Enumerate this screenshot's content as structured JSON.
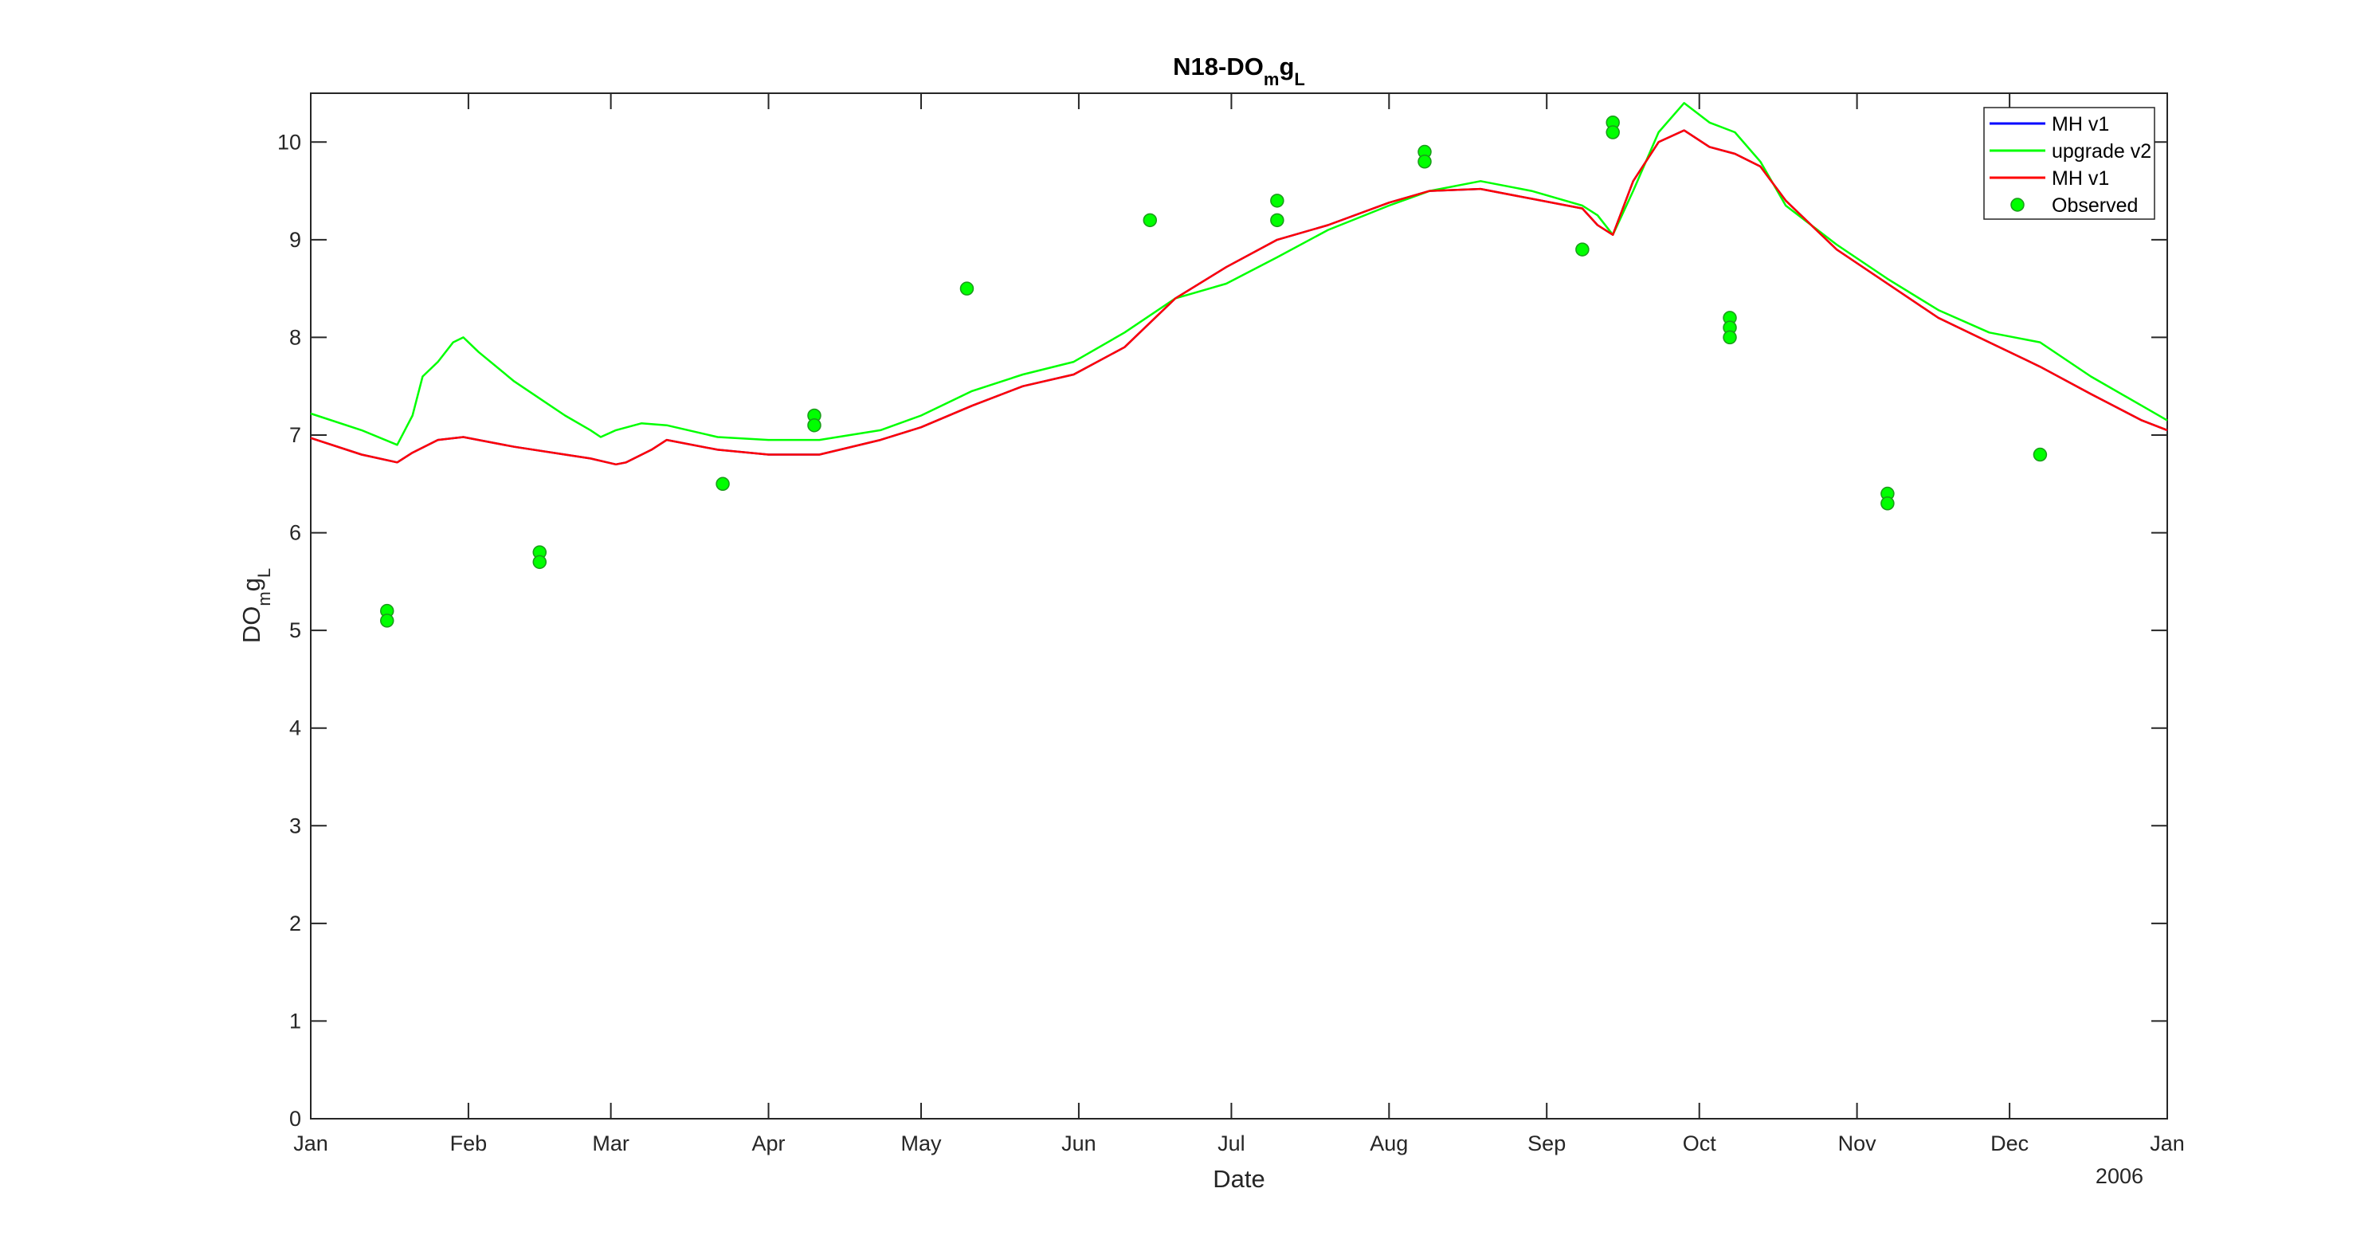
{
  "chart_data": {
    "type": "line",
    "title": "N18-DO",
    "title_sub": "m",
    "title_suffix": "g",
    "title_sub2": "L",
    "xlabel": "Date",
    "ylabel": "DO",
    "ylabel_sub": "m",
    "ylabel_suffix": "g",
    "ylabel_sub2": "L",
    "year_label": "2006",
    "xlim": [
      0,
      365
    ],
    "ylim": [
      0,
      10.5
    ],
    "x_ticks": [
      0,
      31,
      59,
      90,
      120,
      151,
      181,
      212,
      243,
      273,
      304,
      334,
      365
    ],
    "x_tick_labels": [
      "Jan",
      "Feb",
      "Mar",
      "Apr",
      "May",
      "Jun",
      "Jul",
      "Aug",
      "Sep",
      "Oct",
      "Nov",
      "Dec",
      "Jan"
    ],
    "y_ticks": [
      0,
      1,
      2,
      3,
      4,
      5,
      6,
      7,
      8,
      9,
      10
    ],
    "y_tick_labels": [
      "0",
      "1",
      "2",
      "3",
      "4",
      "5",
      "6",
      "7",
      "8",
      "9",
      "10"
    ],
    "grid": false,
    "legend_position": "top-right",
    "series": [
      {
        "name": "MH v1",
        "color": "#0000ff",
        "style": "line",
        "x": [
          0,
          10,
          17,
          20,
          25,
          30,
          35,
          40,
          50,
          55,
          60,
          62,
          67,
          70,
          80,
          90,
          100,
          112,
          120,
          130,
          140,
          150,
          160,
          170,
          180,
          190,
          200,
          212,
          220,
          230,
          240,
          250,
          253,
          256,
          260,
          265,
          270,
          275,
          280,
          285,
          290,
          300,
          310,
          320,
          330,
          340,
          350,
          360,
          365
        ],
        "y": [
          6.97,
          6.8,
          6.72,
          6.82,
          6.95,
          6.98,
          6.93,
          6.88,
          6.8,
          6.76,
          6.7,
          6.72,
          6.85,
          6.95,
          6.85,
          6.8,
          6.8,
          6.95,
          7.08,
          7.3,
          7.5,
          7.62,
          7.9,
          8.4,
          8.72,
          9.0,
          9.15,
          9.38,
          9.5,
          9.52,
          9.42,
          9.32,
          9.15,
          9.05,
          9.6,
          10.0,
          10.12,
          9.95,
          9.88,
          9.75,
          9.4,
          8.9,
          8.55,
          8.2,
          7.95,
          7.7,
          7.42,
          7.15,
          7.05
        ]
      },
      {
        "name": "upgrade v2",
        "color": "#00ff00",
        "style": "line",
        "x": [
          0,
          10,
          17,
          20,
          22,
          25,
          28,
          30,
          33,
          40,
          50,
          55,
          57,
          60,
          65,
          70,
          80,
          90,
          100,
          112,
          120,
          130,
          140,
          150,
          160,
          170,
          180,
          190,
          200,
          212,
          220,
          230,
          240,
          250,
          253,
          256,
          260,
          265,
          270,
          275,
          280,
          285,
          290,
          300,
          310,
          320,
          330,
          340,
          350,
          360,
          365
        ],
        "y": [
          7.22,
          7.05,
          6.9,
          7.2,
          7.6,
          7.75,
          7.95,
          8.0,
          7.85,
          7.55,
          7.2,
          7.05,
          6.98,
          7.05,
          7.12,
          7.1,
          6.98,
          6.95,
          6.95,
          7.05,
          7.2,
          7.45,
          7.62,
          7.75,
          8.05,
          8.4,
          8.55,
          8.82,
          9.1,
          9.35,
          9.5,
          9.6,
          9.5,
          9.35,
          9.25,
          9.05,
          9.5,
          10.1,
          10.4,
          10.2,
          10.1,
          9.8,
          9.35,
          8.95,
          8.6,
          8.28,
          8.05,
          7.95,
          7.6,
          7.3,
          7.15
        ]
      },
      {
        "name": "MH v1",
        "color": "#ff0000",
        "style": "line",
        "x": [
          0,
          10,
          17,
          20,
          25,
          30,
          35,
          40,
          50,
          55,
          60,
          62,
          67,
          70,
          80,
          90,
          100,
          112,
          120,
          130,
          140,
          150,
          160,
          170,
          180,
          190,
          200,
          212,
          220,
          230,
          240,
          250,
          253,
          256,
          260,
          265,
          270,
          275,
          280,
          285,
          290,
          300,
          310,
          320,
          330,
          340,
          350,
          360,
          365
        ],
        "y": [
          6.97,
          6.8,
          6.72,
          6.82,
          6.95,
          6.98,
          6.93,
          6.88,
          6.8,
          6.76,
          6.7,
          6.72,
          6.85,
          6.95,
          6.85,
          6.8,
          6.8,
          6.95,
          7.08,
          7.3,
          7.5,
          7.62,
          7.9,
          8.4,
          8.72,
          9.0,
          9.15,
          9.38,
          9.5,
          9.52,
          9.42,
          9.32,
          9.15,
          9.05,
          9.6,
          10.0,
          10.12,
          9.95,
          9.88,
          9.75,
          9.4,
          8.9,
          8.55,
          8.2,
          7.95,
          7.7,
          7.42,
          7.15,
          7.05
        ]
      },
      {
        "name": "Observed",
        "color": "#00ff00",
        "style": "marker",
        "x": [
          15,
          15,
          45,
          45,
          81,
          99,
          99,
          129,
          165,
          190,
          190,
          219,
          219,
          250,
          256,
          256,
          279,
          279,
          279,
          310,
          310,
          340
        ],
        "y": [
          5.2,
          5.1,
          5.8,
          5.7,
          6.5,
          7.2,
          7.1,
          8.5,
          9.2,
          9.4,
          9.2,
          9.9,
          9.8,
          8.9,
          10.2,
          10.1,
          8.2,
          8.1,
          8.0,
          6.4,
          6.3,
          6.8
        ]
      }
    ]
  }
}
